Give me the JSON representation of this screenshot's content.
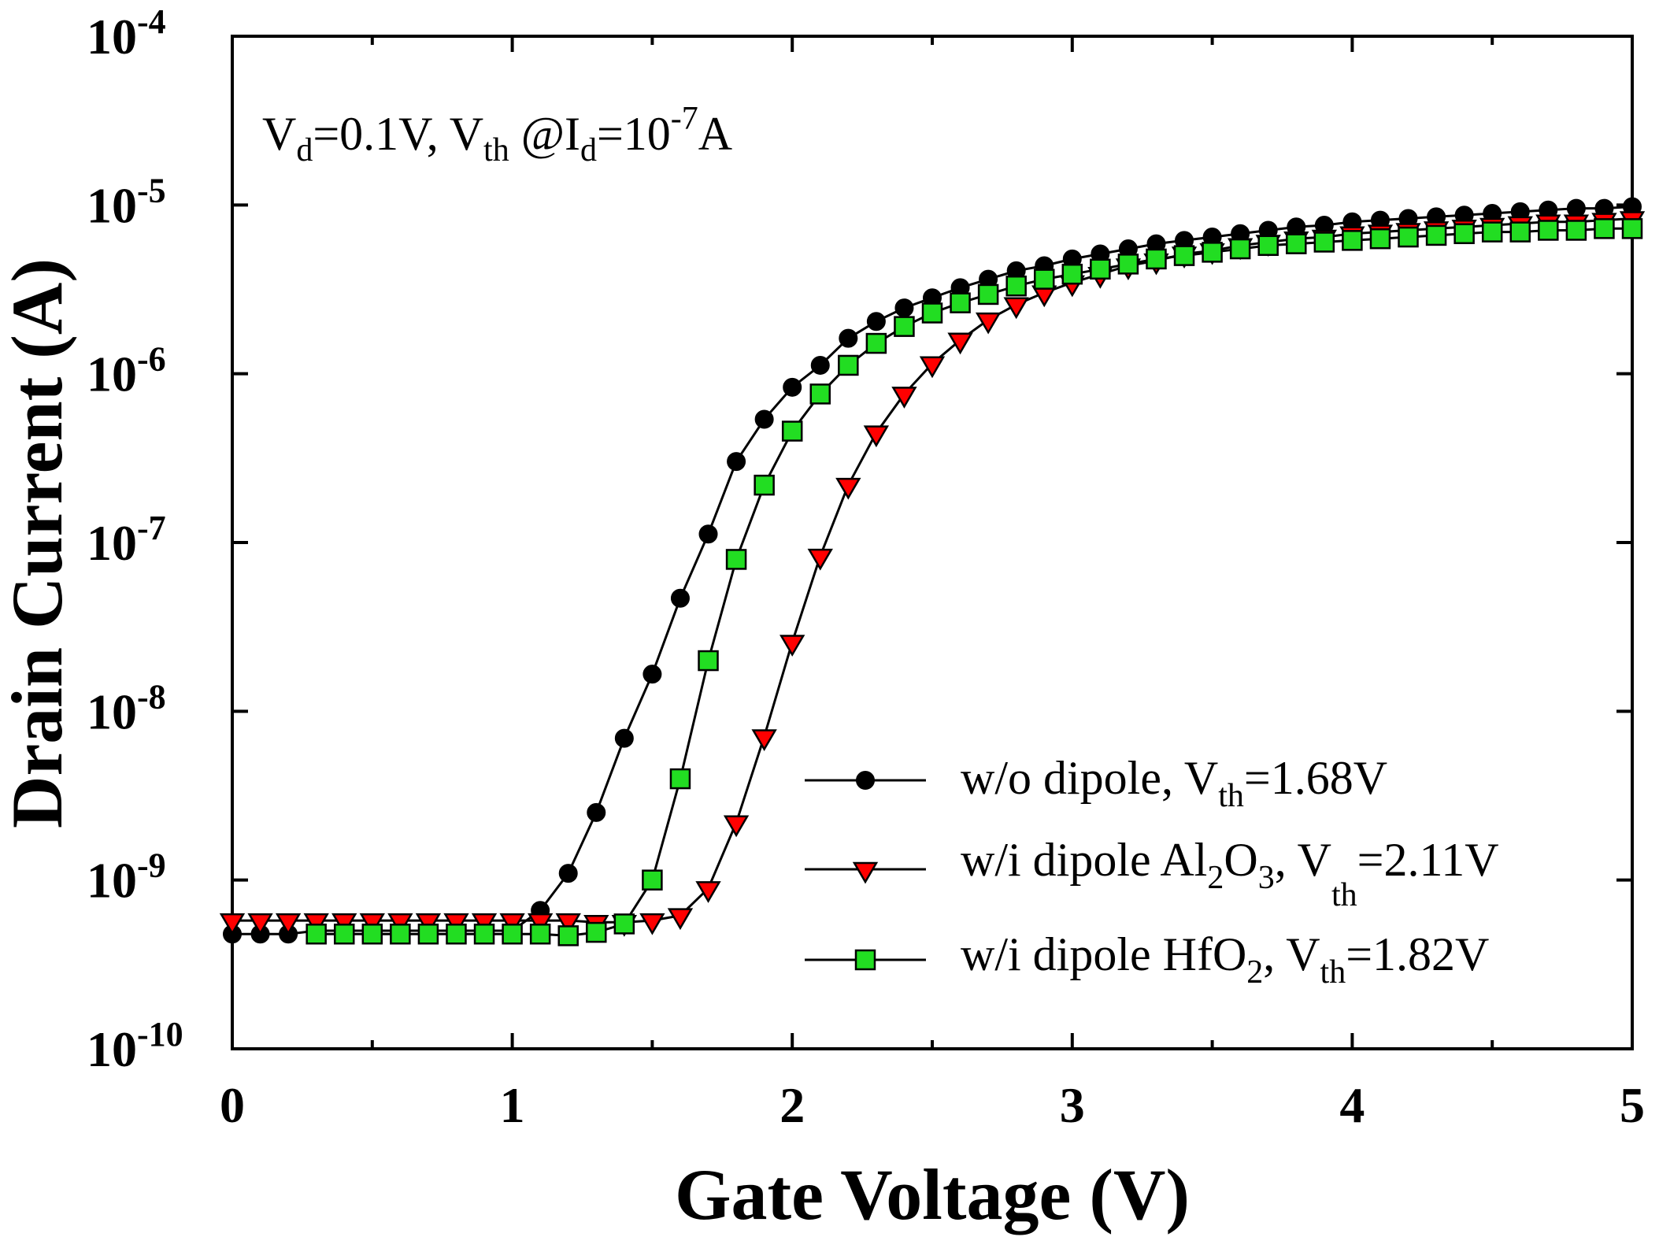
{
  "chart_data": {
    "type": "line",
    "xlabel": "Gate Voltage (V)",
    "ylabel": "Drain Current (A)",
    "yscale": "log",
    "xlim": [
      0,
      5
    ],
    "ylim_exp": [
      -10,
      -4
    ],
    "x_ticks": [
      "0",
      "1",
      "2",
      "3",
      "4",
      "5"
    ],
    "y_ticks": [
      {
        "base": "10",
        "exp": "-10"
      },
      {
        "base": "10",
        "exp": "-9"
      },
      {
        "base": "10",
        "exp": "-8"
      },
      {
        "base": "10",
        "exp": "-7"
      },
      {
        "base": "10",
        "exp": "-6"
      },
      {
        "base": "10",
        "exp": "-5"
      },
      {
        "base": "10",
        "exp": "-4"
      }
    ],
    "annotation": {
      "p1": "V",
      "s1": "d",
      "p2": "=0.1V, V",
      "s2": "th",
      "p3": " @I",
      "s3": "d",
      "p4": "=10",
      "sup": "-7",
      "p5": "A"
    },
    "legend": [
      {
        "t1": "w/o dipole, V",
        "s1": "th",
        "t2": "=1.68V",
        "t3": "",
        "s2": "",
        "t4": ""
      },
      {
        "t1": "w/i dipole Al",
        "s1": "2",
        "t2": "O",
        "s2": "3",
        "t3": ", V",
        "s3": "th",
        "t4": "=2.11V"
      },
      {
        "t1": "w/i dipole HfO",
        "s1": "2",
        "t2": ", V",
        "s2": "th",
        "t3": "=1.82V",
        "s3": "",
        "t4": ""
      }
    ],
    "series": [
      {
        "name": "w/o dipole, Vth=1.68V",
        "marker": "circle",
        "color": "#000000",
        "x": [
          0,
          0.1,
          0.2,
          0.3,
          0.4,
          0.5,
          0.6,
          0.7,
          0.8,
          0.9,
          1.0,
          1.1,
          1.2,
          1.3,
          1.4,
          1.5,
          1.6,
          1.7,
          1.8,
          1.9,
          2.0,
          2.1,
          2.2,
          2.3,
          2.4,
          2.5,
          2.6,
          2.7,
          2.8,
          2.9,
          3.0,
          3.1,
          3.2,
          3.3,
          3.4,
          3.5,
          3.6,
          3.7,
          3.8,
          3.9,
          4.0,
          4.1,
          4.2,
          4.3,
          4.4,
          4.5,
          4.6,
          4.7,
          4.8,
          4.9,
          5.0
        ],
        "log_y": [
          -9.32,
          -9.32,
          -9.32,
          -9.3,
          -9.3,
          -9.3,
          -9.3,
          -9.3,
          -9.3,
          -9.3,
          -9.3,
          -9.18,
          -8.96,
          -8.6,
          -8.16,
          -7.78,
          -7.33,
          -6.95,
          -6.52,
          -6.27,
          -6.08,
          -5.95,
          -5.79,
          -5.69,
          -5.61,
          -5.55,
          -5.49,
          -5.44,
          -5.39,
          -5.36,
          -5.32,
          -5.29,
          -5.26,
          -5.23,
          -5.21,
          -5.19,
          -5.17,
          -5.15,
          -5.13,
          -5.12,
          -5.1,
          -5.09,
          -5.08,
          -5.07,
          -5.06,
          -5.05,
          -5.04,
          -5.03,
          -5.02,
          -5.02,
          -5.01
        ]
      },
      {
        "name": "w/i dipole Al2O3, Vth=2.11V",
        "marker": "triangle-down",
        "color": "#ff0000",
        "x": [
          0,
          0.1,
          0.2,
          0.3,
          0.4,
          0.5,
          0.6,
          0.7,
          0.8,
          0.9,
          1.0,
          1.1,
          1.2,
          1.3,
          1.4,
          1.5,
          1.6,
          1.7,
          1.8,
          1.9,
          2.0,
          2.1,
          2.2,
          2.3,
          2.4,
          2.5,
          2.6,
          2.7,
          2.8,
          2.9,
          3.0,
          3.1,
          3.2,
          3.3,
          3.4,
          3.5,
          3.6,
          3.7,
          3.8,
          3.9,
          4.0,
          4.1,
          4.2,
          4.3,
          4.4,
          4.5,
          4.6,
          4.7,
          4.8,
          4.9,
          5.0
        ],
        "log_y": [
          -9.24,
          -9.24,
          -9.24,
          -9.24,
          -9.24,
          -9.24,
          -9.24,
          -9.24,
          -9.24,
          -9.24,
          -9.24,
          -9.24,
          -9.24,
          -9.25,
          -9.25,
          -9.24,
          -9.21,
          -9.05,
          -8.66,
          -8.15,
          -7.59,
          -7.08,
          -6.66,
          -6.35,
          -6.12,
          -5.94,
          -5.8,
          -5.68,
          -5.59,
          -5.52,
          -5.46,
          -5.41,
          -5.36,
          -5.33,
          -5.29,
          -5.27,
          -5.24,
          -5.22,
          -5.2,
          -5.19,
          -5.17,
          -5.16,
          -5.15,
          -5.14,
          -5.13,
          -5.12,
          -5.11,
          -5.1,
          -5.1,
          -5.09,
          -5.08
        ]
      },
      {
        "name": "w/i dipole HfO2, Vth=1.82V",
        "marker": "square",
        "color": "#22dd22",
        "x": [
          0.3,
          0.4,
          0.5,
          0.6,
          0.7,
          0.8,
          0.9,
          1.0,
          1.1,
          1.2,
          1.3,
          1.4,
          1.5,
          1.6,
          1.7,
          1.8,
          1.9,
          2.0,
          2.1,
          2.2,
          2.3,
          2.4,
          2.5,
          2.6,
          2.7,
          2.8,
          2.9,
          3.0,
          3.1,
          3.2,
          3.3,
          3.4,
          3.5,
          3.6,
          3.7,
          3.8,
          3.9,
          4.0,
          4.1,
          4.2,
          4.3,
          4.4,
          4.5,
          4.6,
          4.7,
          4.8,
          4.9,
          5.0
        ],
        "log_y": [
          -9.32,
          -9.32,
          -9.32,
          -9.32,
          -9.32,
          -9.32,
          -9.32,
          -9.32,
          -9.32,
          -9.33,
          -9.31,
          -9.26,
          -9.0,
          -8.4,
          -7.7,
          -7.1,
          -6.66,
          -6.34,
          -6.12,
          -5.95,
          -5.82,
          -5.72,
          -5.64,
          -5.58,
          -5.53,
          -5.48,
          -5.44,
          -5.41,
          -5.38,
          -5.35,
          -5.32,
          -5.3,
          -5.28,
          -5.26,
          -5.24,
          -5.23,
          -5.22,
          -5.21,
          -5.2,
          -5.19,
          -5.18,
          -5.17,
          -5.16,
          -5.16,
          -5.15,
          -5.15,
          -5.14,
          -5.14
        ]
      }
    ]
  }
}
